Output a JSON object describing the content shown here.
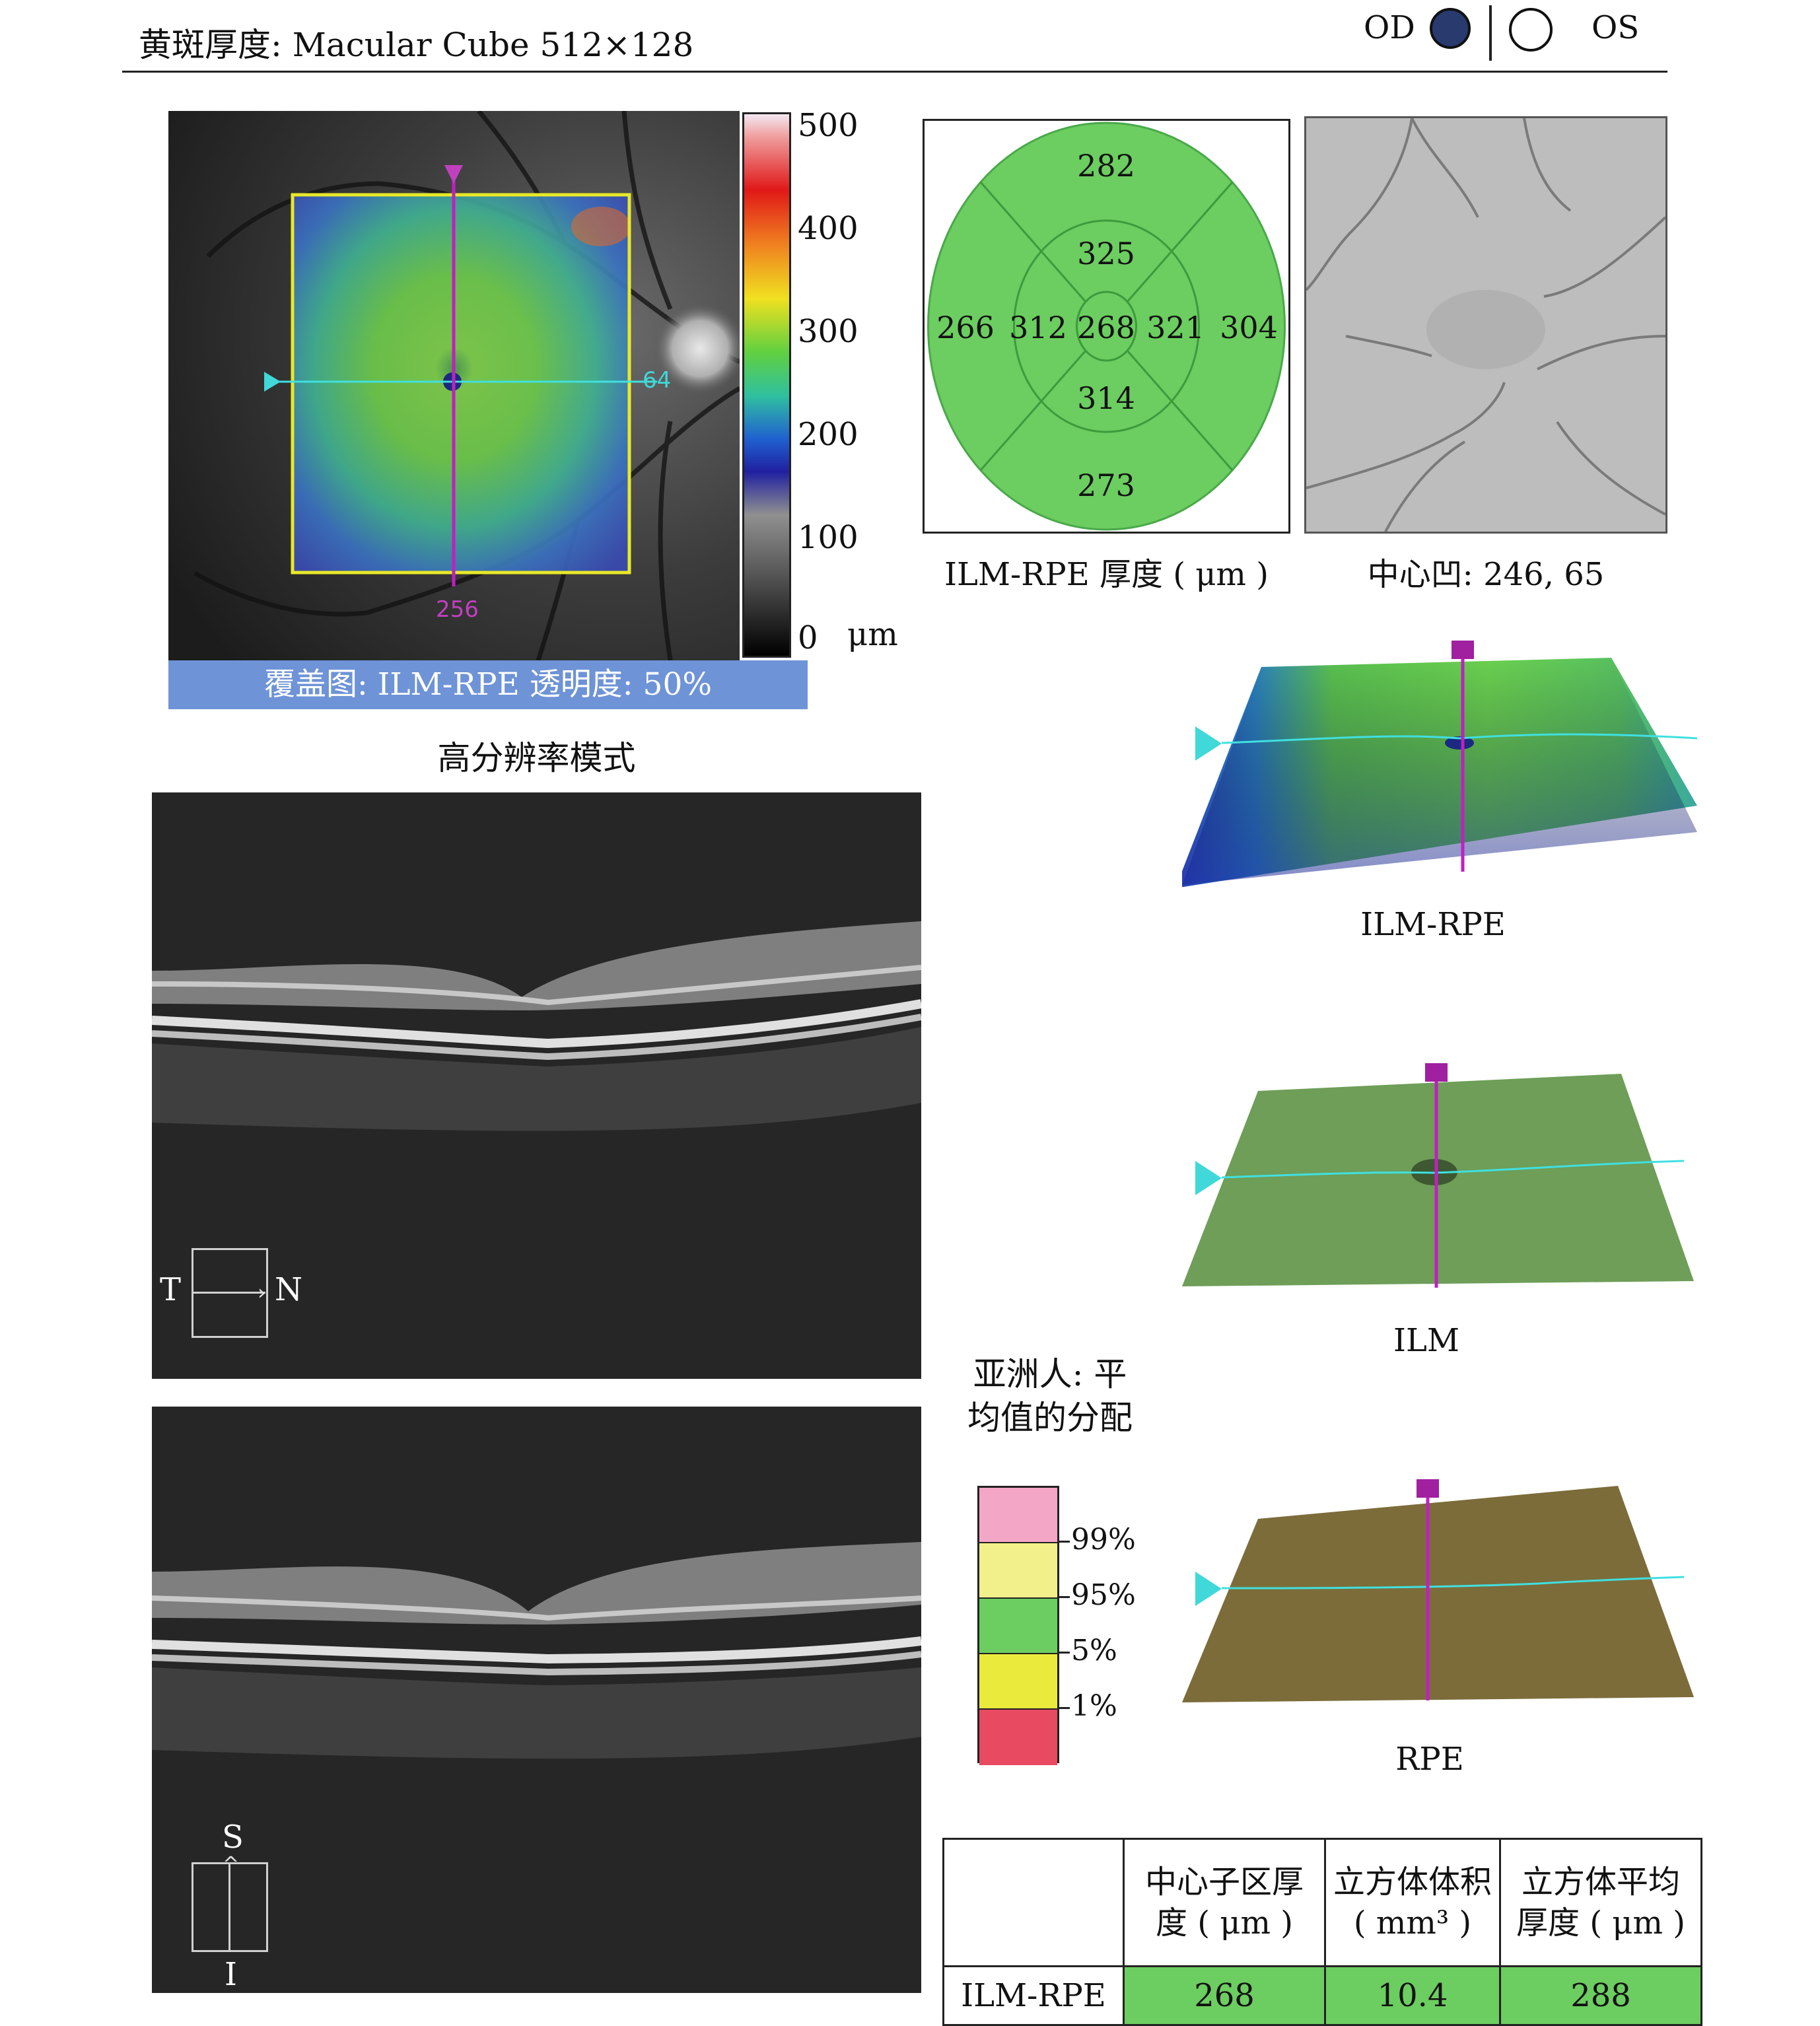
{
  "header": {
    "title": "黄斑厚度: Macular Cube 512×128",
    "od_label": "OD",
    "os_label": "OS",
    "selected_eye": "OD"
  },
  "thickness_map": {
    "overlay_caption": "覆盖图: ILM-RPE 透明度: 50%",
    "mode_caption": "高分辨率模式",
    "horizontal_marker": "64",
    "vertical_marker": "256",
    "scale_labels": [
      "500",
      "400",
      "300",
      "200",
      "100",
      "0"
    ],
    "scale_unit": "μm"
  },
  "etdrs_grid": {
    "caption": "ILM-RPE 厚度 ( μm )",
    "center": "268",
    "inner_superior": "325",
    "inner_inferior": "314",
    "inner_temporal": "312",
    "inner_nasal": "321",
    "outer_superior": "282",
    "outer_inferior": "273",
    "outer_temporal": "266",
    "outer_nasal": "304",
    "fill_color": "#6ccd60"
  },
  "fundus_image": {
    "caption": "中心凹: 246, 65"
  },
  "surfaces": {
    "ilm_rpe_label": "ILM-RPE",
    "ilm_label": "ILM",
    "rpe_label": "RPE"
  },
  "bscans": {
    "horizontal": {
      "left": "T",
      "right": "N"
    },
    "vertical": {
      "top": "S",
      "bottom": "I"
    }
  },
  "distribution": {
    "title": "亚洲人: 平均值的分配",
    "bands": [
      {
        "color": "#f4a6c6"
      },
      {
        "color": "#f2f08a"
      },
      {
        "color": "#6ccd60"
      },
      {
        "color": "#eaea3c"
      },
      {
        "color": "#e84a62"
      }
    ],
    "thresholds": [
      "99%",
      "95%",
      "5%",
      "1%"
    ]
  },
  "table": {
    "headers": [
      "中心子区厚度 ( μm )",
      "立方体体积 ( mm³ )",
      "立方体平均厚度 ( μm )"
    ],
    "row_label": "ILM-RPE",
    "values": [
      "268",
      "10.4",
      "288"
    ]
  }
}
